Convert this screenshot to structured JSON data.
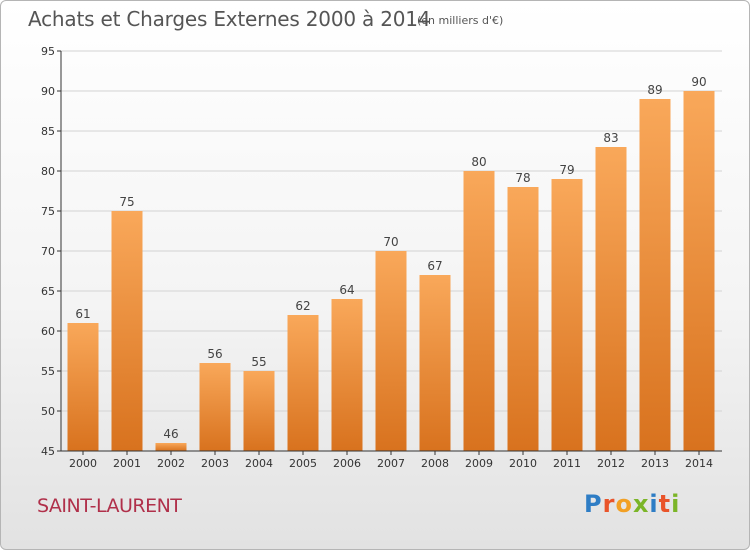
{
  "header": {
    "title": "Achats et Charges Externes 2000 à 2014",
    "subtitle": "(en milliers d'€)"
  },
  "footer": {
    "commune": "SAINT-LAURENT",
    "logo_text": "Proxiti",
    "logo_colors": [
      "#2e7dc5",
      "#e9542a",
      "#f2a024",
      "#7bb528",
      "#2e7dc5",
      "#e9542a",
      "#7bb528"
    ]
  },
  "colors": {
    "bar_light": "#f9a85a",
    "bar_dark": "#d8721e",
    "axis": "#333333",
    "grid": "#d3d3d3"
  },
  "chart_data": {
    "type": "bar",
    "title": "Achats et Charges Externes 2000 à 2014",
    "subtitle": "(en milliers d'€)",
    "categories": [
      "2000",
      "2001",
      "2002",
      "2003",
      "2004",
      "2005",
      "2006",
      "2007",
      "2008",
      "2009",
      "2010",
      "2011",
      "2012",
      "2013",
      "2014"
    ],
    "values": [
      61,
      75,
      46,
      56,
      55,
      62,
      64,
      70,
      67,
      80,
      78,
      79,
      83,
      89,
      90
    ],
    "ylim": [
      45,
      95
    ],
    "yticks": [
      45,
      50,
      55,
      60,
      65,
      70,
      75,
      80,
      85,
      90,
      95
    ],
    "grid": true,
    "data_labels": true
  }
}
